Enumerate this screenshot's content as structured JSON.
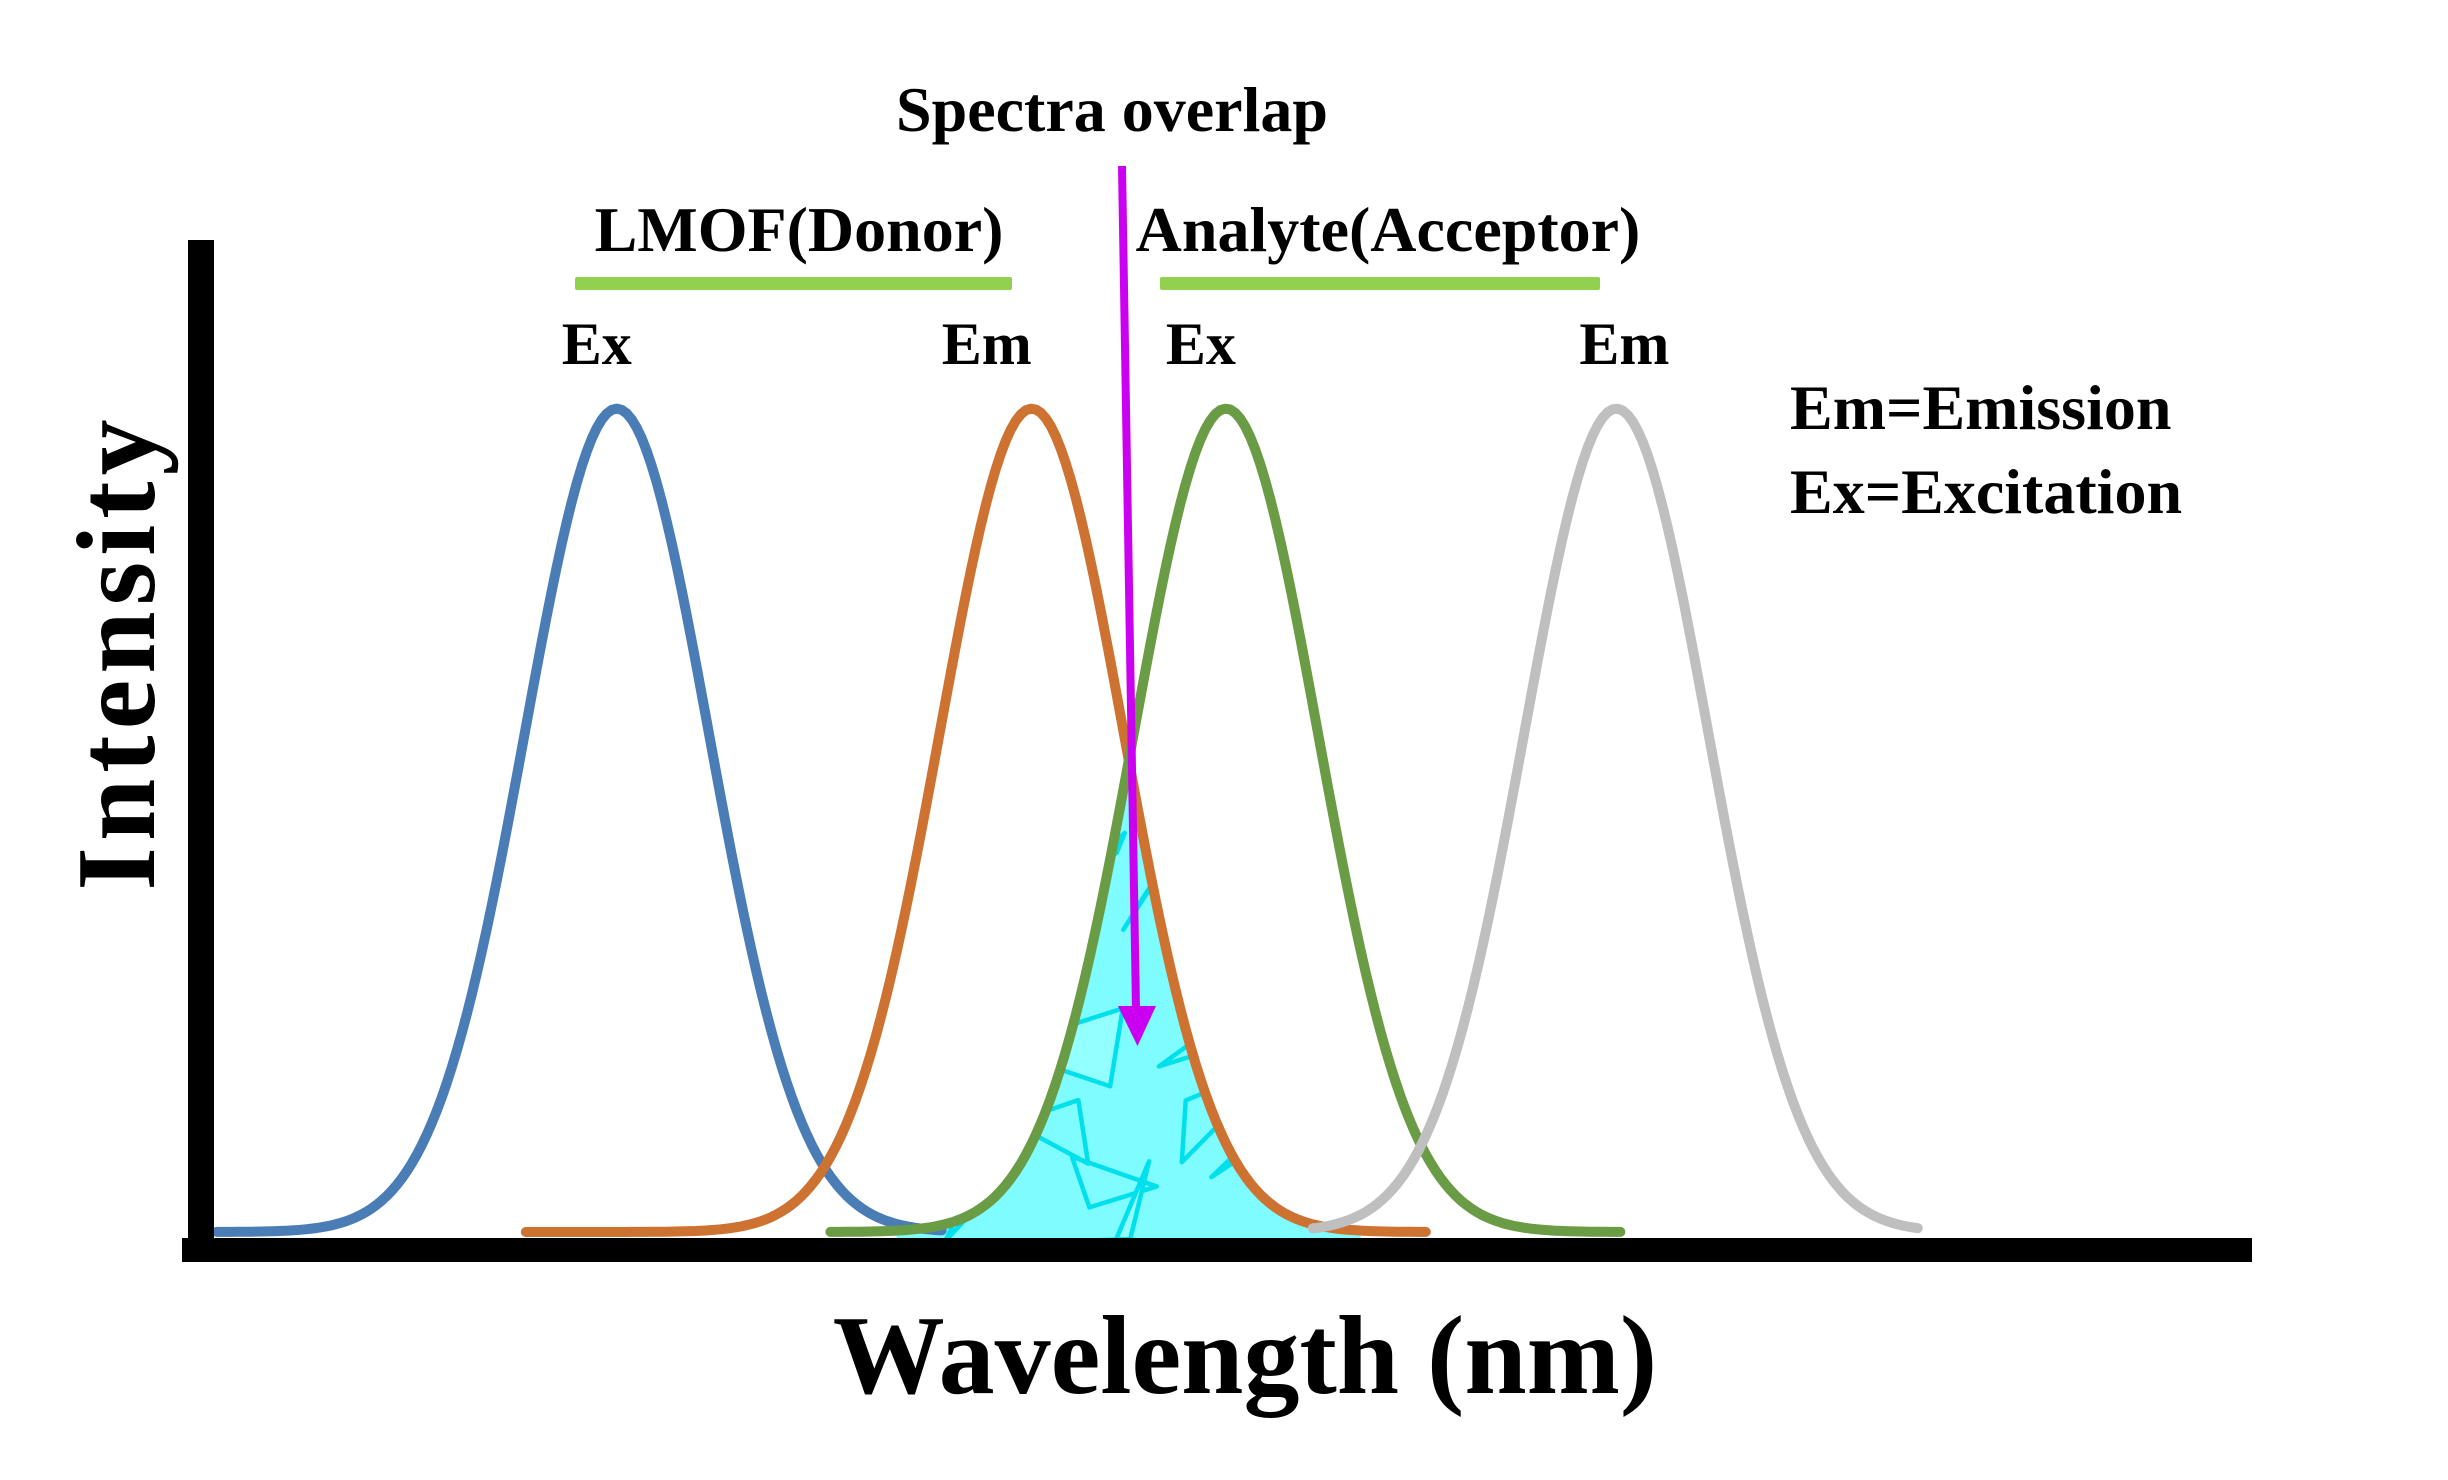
{
  "chart_data": {
    "type": "area",
    "title": "",
    "xlabel": "Wavelength (nm)",
    "ylabel": "Intensity",
    "x_ticks": [],
    "y_ticks": [],
    "axis_color": "#000000",
    "background_color": "#ffffff",
    "annotations": [
      {
        "text": "Spectra overlap",
        "arrow_color": "#cc00f0",
        "points_to": "overlap region between donor emission and acceptor excitation"
      }
    ],
    "legend_entries": [
      "Em=Emission",
      "Ex=Excitation"
    ],
    "legend_position": "right",
    "groups": [
      {
        "label": "LMOF(Donor)",
        "underline_color": "#92d050",
        "series_tags": [
          "Ex",
          "Em"
        ]
      },
      {
        "label": "Analyte(Acceptor)",
        "underline_color": "#92d050",
        "series_tags": [
          "Ex",
          "Em"
        ]
      }
    ],
    "series": [
      {
        "name": "LMOF(Donor) Ex",
        "tag": "Ex",
        "color": "#4a7db6",
        "peak_x_frac": 0.2,
        "sigma_frac": 0.045,
        "peak_height_frac": 0.83
      },
      {
        "name": "LMOF(Donor) Em",
        "tag": "Em",
        "color": "#cd7231",
        "peak_x_frac": 0.403,
        "sigma_frac": 0.045,
        "peak_height_frac": 0.83
      },
      {
        "name": "Analyte(Acceptor) Ex",
        "tag": "Ex",
        "color": "#6a9b45",
        "peak_x_frac": 0.498,
        "sigma_frac": 0.045,
        "peak_height_frac": 0.83
      },
      {
        "name": "Analyte(Acceptor) Em",
        "tag": "Em",
        "color": "#bfbfbf",
        "peak_x_frac": 0.689,
        "sigma_frac": 0.045,
        "peak_height_frac": 0.83
      }
    ],
    "overlap": {
      "between": [
        "LMOF(Donor) Em",
        "Analyte(Acceptor) Ex"
      ],
      "fill_color": "#7ffcff",
      "hatch_color": "#00e0ec",
      "style": "shattered-triangles"
    }
  }
}
